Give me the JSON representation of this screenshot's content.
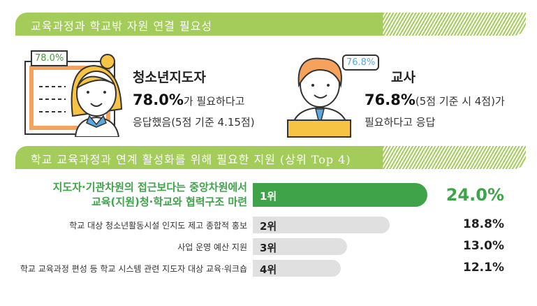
{
  "section1": {
    "title": "교육과정과 학교밖 자원 연결 필요성",
    "youth_leader": {
      "bubble": "78.0%",
      "name": "청소년지도자",
      "value": "78.0%",
      "text1": "가 필요하다고",
      "text2": "응답했음(5점 기준 4.15점)"
    },
    "teacher": {
      "bubble": "76.8%",
      "name": "교사",
      "value": "76.8%",
      "text1": "(5점 기준 시 4점)가",
      "text2": "필요하다고 응답"
    }
  },
  "section2": {
    "title": "학교 교육과정과 연계 활성화를 위해 필요한 지원 (상위 Top 4)"
  },
  "colors": {
    "header": "#a3cc5a",
    "top_bar": "#3fa34a",
    "other_bars": "#e0e0e0",
    "top_text": "#3fa34a",
    "bubble_green": "#4a9a3a",
    "bubble_blue": "#5aa8e0"
  },
  "chart_data": {
    "type": "bar",
    "orientation": "horizontal",
    "categories": [
      "지도자·기관차원의 접근보다는 중앙차원에서 교육(지원)청·학교와 협력구조 마련",
      "학교 대상 청소년활동시설 인지도 제고 종합적 홍보",
      "사업 운영 예산 지원",
      "학교 교육과정 편성 등 학교 시스템 관련 지도자 대상 교육·워크숍"
    ],
    "category_lines": [
      [
        "지도자·기관차원의 접근보다는 중앙차원에서",
        "교육(지원)청·학교와 협력구조 마련"
      ],
      [
        "학교 대상 청소년활동시설 인지도 제고 종합적 홍보"
      ],
      [
        "사업 운영 예산 지원"
      ],
      [
        "학교 교육과정 편성 등 학교 시스템 관련 지도자 대상 교육·워크숍"
      ]
    ],
    "ranks": [
      "1위",
      "2위",
      "3위",
      "4위"
    ],
    "values": [
      24.0,
      18.8,
      13.0,
      12.1
    ],
    "value_labels": [
      "24.0%",
      "18.8%",
      "13.0%",
      "12.1%"
    ]
  }
}
